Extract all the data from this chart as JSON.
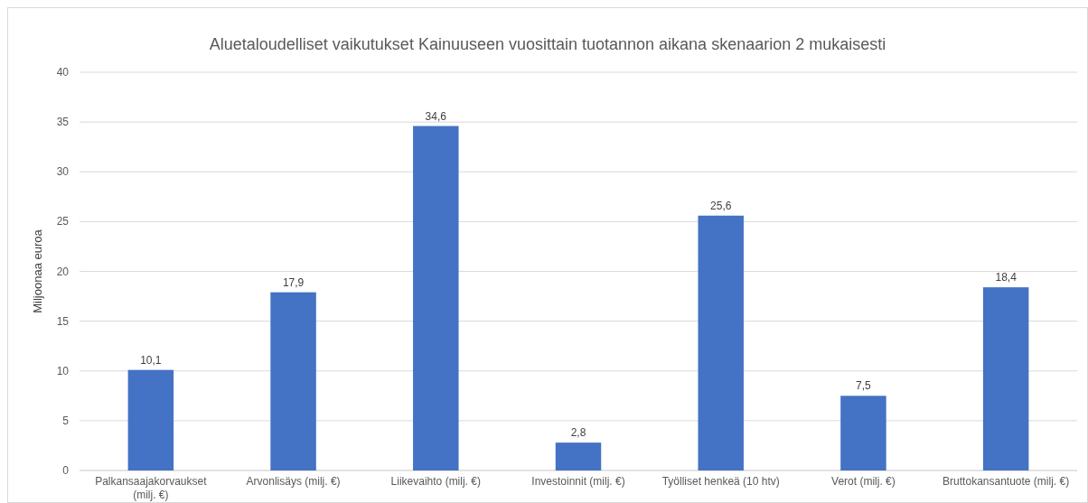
{
  "chart_data": {
    "type": "bar",
    "title": "Aluetaloudelliset vaikutukset Kainuuseen vuosittain tuotannon aikana skenaarion 2 mukaisesti",
    "ylabel": "Miljoonaa euroa",
    "categories": [
      "Palkansaajakorvaukset (milj. €)",
      "Arvonlisäys (milj. €)",
      "Liikevaihto (milj. €)",
      "Investoinnit (milj. €)",
      "Työlliset henkeä (10 htv)",
      "Verot  (milj. €)",
      "Bruttokansantuote (milj. €)"
    ],
    "values": [
      10.1,
      17.9,
      34.6,
      2.8,
      25.6,
      7.5,
      18.4
    ],
    "value_labels": [
      "10,1",
      "17,9",
      "34,6",
      "2,8",
      "25,6",
      "7,5",
      "18,4"
    ],
    "color": "#4472c4",
    "ylim": [
      0,
      40
    ],
    "yticks": [
      0,
      5,
      10,
      15,
      20,
      25,
      30,
      35,
      40
    ],
    "grid": "y"
  }
}
